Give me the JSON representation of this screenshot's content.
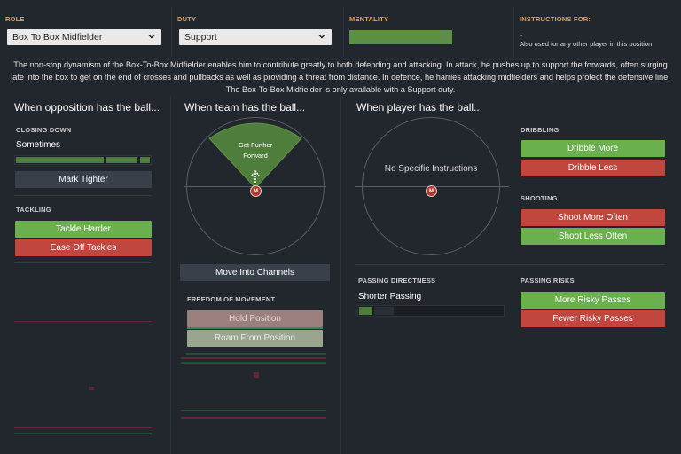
{
  "header": {
    "role_label": "ROLE",
    "role_value": "Box To Box Midfielder",
    "duty_label": "DUTY",
    "duty_value": "Support",
    "mentality_label": "MENTALITY",
    "instructions_label": "INSTRUCTIONS FOR:",
    "instructions_value": "-",
    "instructions_note": "Also used for any other player in this position"
  },
  "description": "The non-stop dynamism of the Box-To-Box Midfielder enables him to contribute greatly to both defending and attacking. In attack, he pushes up to support the forwards, often surging late into the box to get on the end of crosses and pullbacks as well as providing a threat from distance. In defence, he harries attacking midfielders and helps protect the defensive line. The Box-To-Box Midfielder is only available with a Support duty.",
  "opposition": {
    "title": "When opposition has the ball...",
    "closing_down_label": "CLOSING DOWN",
    "closing_down_value": "Sometimes",
    "closing_down_level": 0.85,
    "mark_tighter": "Mark Tighter",
    "tackling_label": "TACKLING",
    "tackle_harder": "Tackle Harder",
    "ease_off_tackles": "Ease Off Tackles"
  },
  "team": {
    "title": "When team has the ball...",
    "zone_label_line1": "Get Further",
    "zone_label_line2": "Forward",
    "player_marker": "M",
    "move_into_channels": "Move Into Channels",
    "freedom_label": "FREEDOM OF MOVEMENT",
    "hold_position": "Hold Position",
    "roam_from_position": "Roam From Position"
  },
  "player": {
    "title": "When player has the ball...",
    "no_instructions": "No Specific Instructions",
    "player_marker": "M",
    "dribbling_label": "DRIBBLING",
    "dribble_more": "Dribble More",
    "dribble_less": "Dribble Less",
    "shooting_label": "SHOOTING",
    "shoot_more_often": "Shoot More Often",
    "shoot_less_often": "Shoot Less Often",
    "passing_directness_label": "PASSING DIRECTNESS",
    "passing_directness_value": "Shorter Passing",
    "passing_directness_level": 0.1,
    "passing_risks_label": "PASSING RISKS",
    "more_risky_passes": "More Risky Passes",
    "fewer_risky_passes": "Fewer Risky Passes"
  },
  "colors": {
    "accent": "#e9a24a",
    "green": "#6ab04c",
    "red": "#c0463e",
    "background": "#22262d"
  }
}
